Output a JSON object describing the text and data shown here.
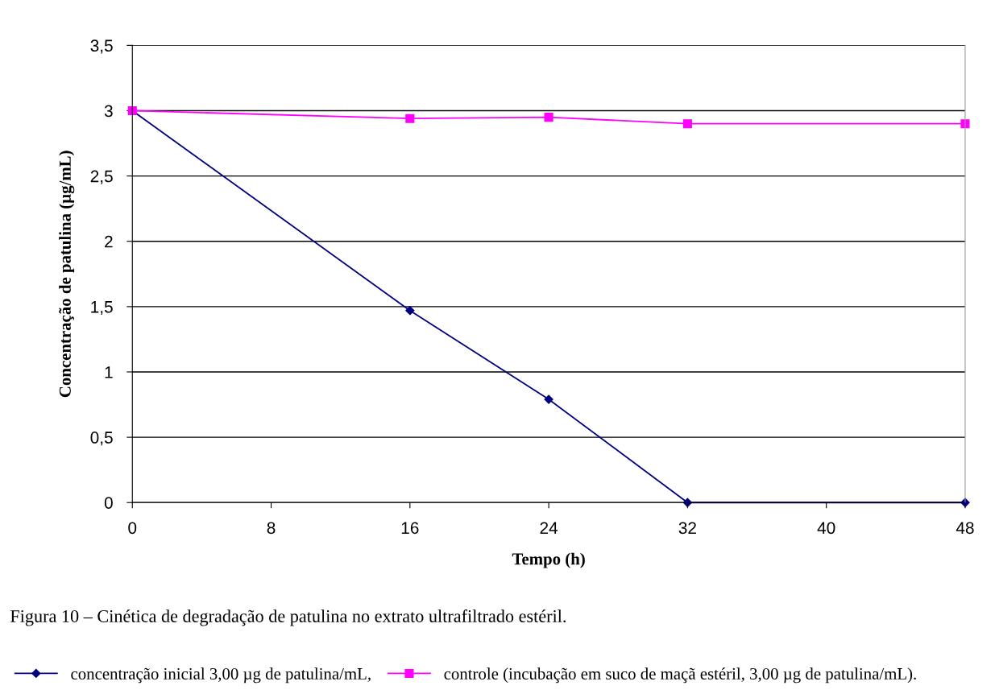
{
  "chart_data": {
    "type": "line",
    "xlabel": "Tempo (h)",
    "ylabel": "Concentração de patulina (µg/mL)",
    "x": [
      0,
      16,
      24,
      32,
      48
    ],
    "series": [
      {
        "name": "concentração inicial 3,00 µg de patulina/mL,",
        "color": "#000080",
        "marker": "diamond",
        "values": [
          3.0,
          1.47,
          0.79,
          0.0,
          0.0
        ]
      },
      {
        "name": "controle (incubação em suco de maçã estéril, 3,00 µg de patulina/mL).",
        "color": "#ff00ff",
        "marker": "square",
        "values": [
          3.0,
          2.94,
          2.95,
          2.9,
          2.9
        ]
      }
    ],
    "xlim": [
      0,
      48
    ],
    "xticks": [
      0,
      8,
      16,
      24,
      32,
      40,
      48
    ],
    "ylim": [
      0,
      3.5
    ],
    "yticks": [
      {
        "value": 0,
        "label": "0"
      },
      {
        "value": 0.5,
        "label": "0,5"
      },
      {
        "value": 1,
        "label": "1"
      },
      {
        "value": 1.5,
        "label": "1,5"
      },
      {
        "value": 2,
        "label": "2"
      },
      {
        "value": 2.5,
        "label": "2,5"
      },
      {
        "value": 3,
        "label": "3"
      },
      {
        "value": 3.5,
        "label": "3,5"
      }
    ],
    "grid": "y",
    "legend": "bottom",
    "annotations": [
      "Figura 10 – Cinética de degradação de patulina no extrato ultrafiltrado estéril."
    ]
  }
}
